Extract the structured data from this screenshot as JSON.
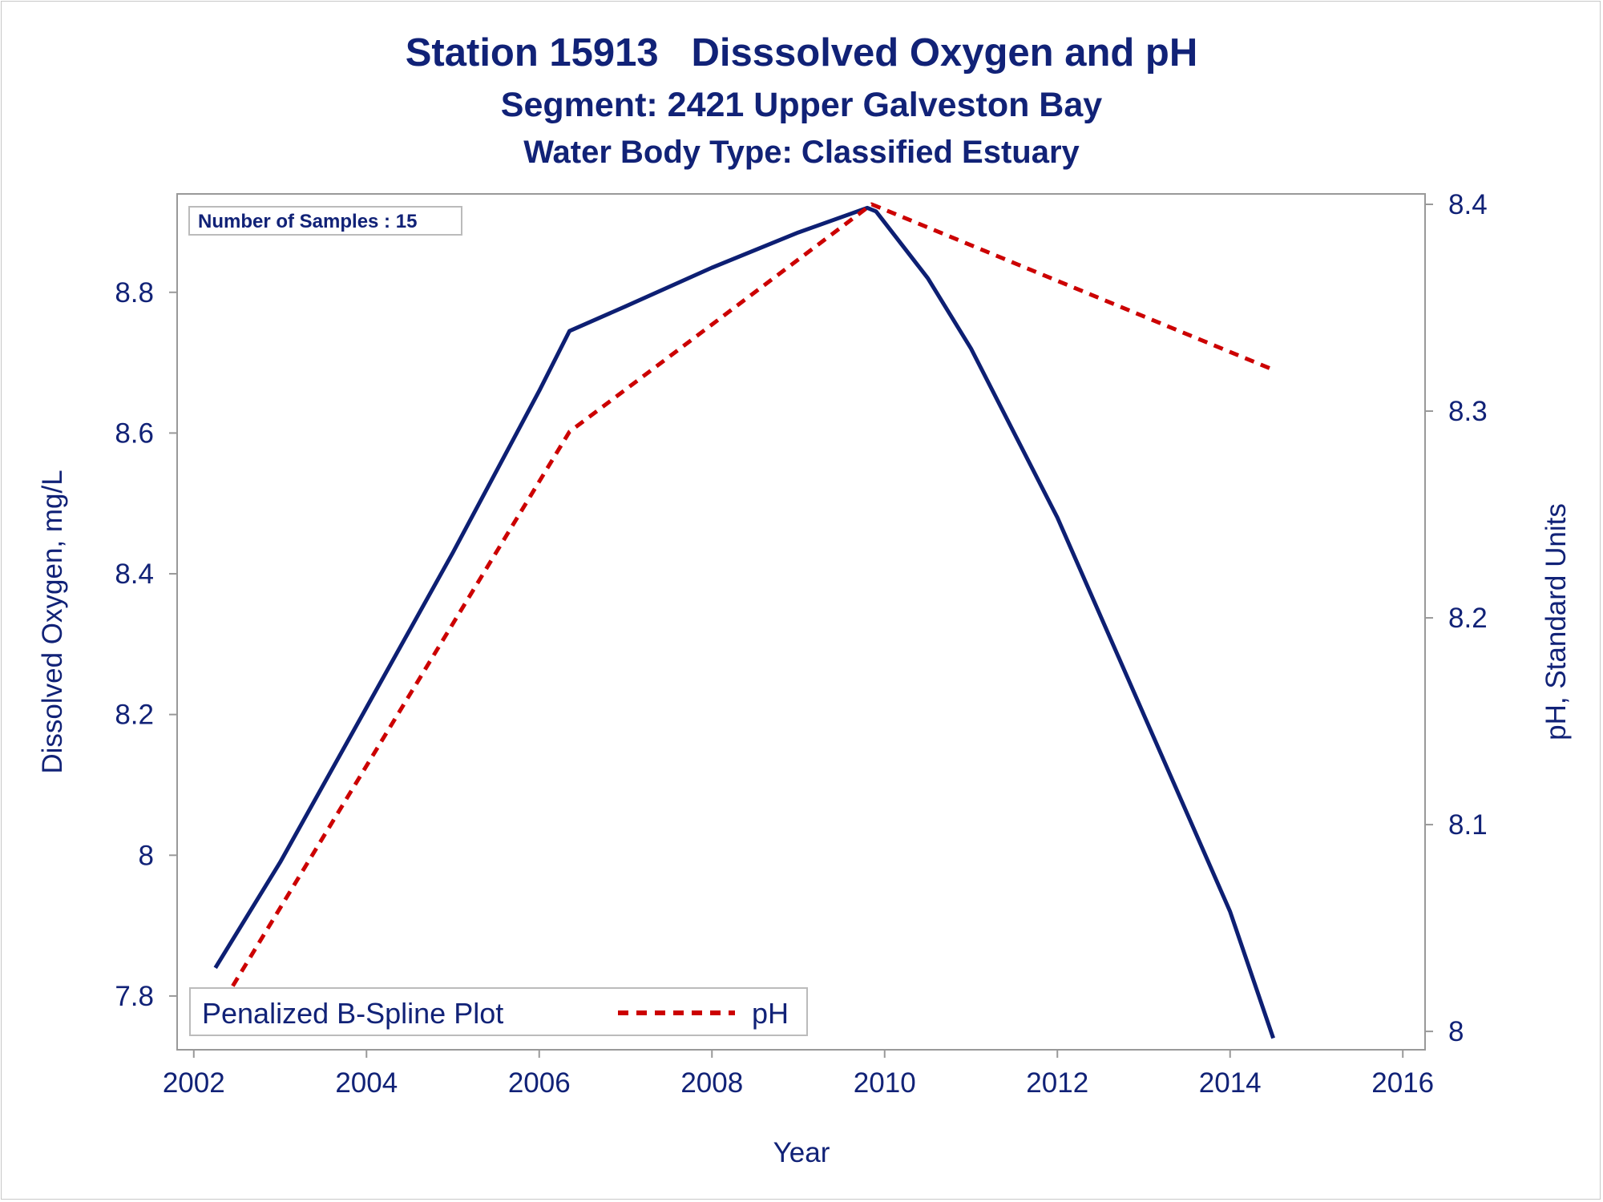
{
  "titles": {
    "line1": "Station 15913   Disssolved Oxygen and pH",
    "line2": "Segment: 2421  Upper Galveston Bay",
    "line3": "Water Body Type: Classified Estuary"
  },
  "inset_label": "Number of Samples : 15",
  "legend": {
    "left_label": "Penalized B-Spline Plot",
    "ph_label": "pH"
  },
  "colors": {
    "text": "#112277",
    "dissolved_oxygen_line": "#0d1f73",
    "ph_line": "#cc0000",
    "axis": "#999999"
  },
  "chart_data": {
    "type": "line",
    "xlabel": "Year",
    "ylabel": "Dissolved Oxygen, mg/L",
    "y2label": "pH, Standard Units",
    "xlim": [
      2001.9,
      2016.1
    ],
    "ylim": [
      7.735,
      8.925
    ],
    "y2lim": [
      7.995,
      8.4
    ],
    "xticks": [
      "2002",
      "2004",
      "2006",
      "2008",
      "2010",
      "2012",
      "2014",
      "2016"
    ],
    "yticks": [
      "7.8",
      "8",
      "8.2",
      "8.4",
      "8.6",
      "8.8"
    ],
    "y2ticks": [
      "8",
      "8.1",
      "8.2",
      "8.3",
      "8.4"
    ],
    "legend_position": "bottom-left",
    "grid": false,
    "series": [
      {
        "axis": "left",
        "style": "solid",
        "x": [
          2002.25,
          2003.0,
          2004.0,
          2005.0,
          2006.0,
          2006.35,
          2007.0,
          2008.0,
          2009.0,
          2009.8,
          2009.9,
          2010.5,
          2011.0,
          2012.0,
          2013.0,
          2014.0,
          2014.5
        ],
        "values": [
          7.84,
          7.99,
          8.21,
          8.43,
          8.66,
          8.745,
          8.78,
          8.835,
          8.885,
          8.92,
          8.915,
          8.82,
          8.72,
          8.48,
          8.2,
          7.92,
          7.74
        ]
      },
      {
        "name": "pH",
        "axis": "right",
        "style": "dashed",
        "x": [
          2002.35,
          2006.35,
          2009.85,
          2014.5
        ],
        "values": [
          8.015,
          8.29,
          8.4,
          8.32
        ]
      }
    ]
  }
}
